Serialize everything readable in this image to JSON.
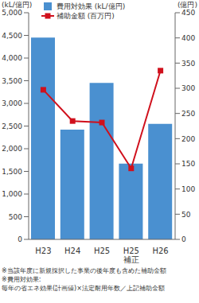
{
  "chart_data": {
    "type": "bar",
    "categories": [
      "H23",
      "H24",
      "H25",
      "H25\n補正",
      "H26"
    ],
    "series": [
      {
        "name": "費用対効果 (kL/億円)",
        "type": "bar",
        "color": "#4a90d0",
        "values": [
          4450,
          2420,
          3450,
          1670,
          2550
        ]
      },
      {
        "name": "補助金額 (百万円)",
        "type": "line",
        "axis": "y2",
        "color": "#d0101c",
        "marker": "square",
        "values": [
          297,
          235,
          232,
          141,
          335
        ]
      }
    ],
    "y_label": "(kL/億円)",
    "y2_label": "(億円)",
    "ylim": [
      0,
      5000
    ],
    "yticks": [
      0,
      500,
      {
        "value": 1000,
        "label": "1,000"
      },
      {
        "value": 1500,
        "label": "1,500"
      },
      {
        "value": 2000,
        "label": "2,000"
      },
      {
        "value": 2500,
        "label": "2,500"
      },
      {
        "value": 3000,
        "label": "3,000"
      },
      {
        "value": 3500,
        "label": "3,500"
      },
      {
        "value": 4000,
        "label": "4,000"
      },
      {
        "value": 4500,
        "label": "4,500"
      },
      {
        "value": 5000,
        "label": "5,000"
      }
    ],
    "y2lim": [
      0,
      450
    ],
    "y2ticks": [
      0,
      50,
      100,
      150,
      200,
      250,
      300,
      350,
      400,
      450
    ],
    "grid": false,
    "notes": [
      "※当該年度に新規採択した事業の後年度も含めた補助金額",
      "※費用対効果:",
      "毎年の省エネ効果(計画値)×法定耐用年数／上記補助金額"
    ]
  }
}
